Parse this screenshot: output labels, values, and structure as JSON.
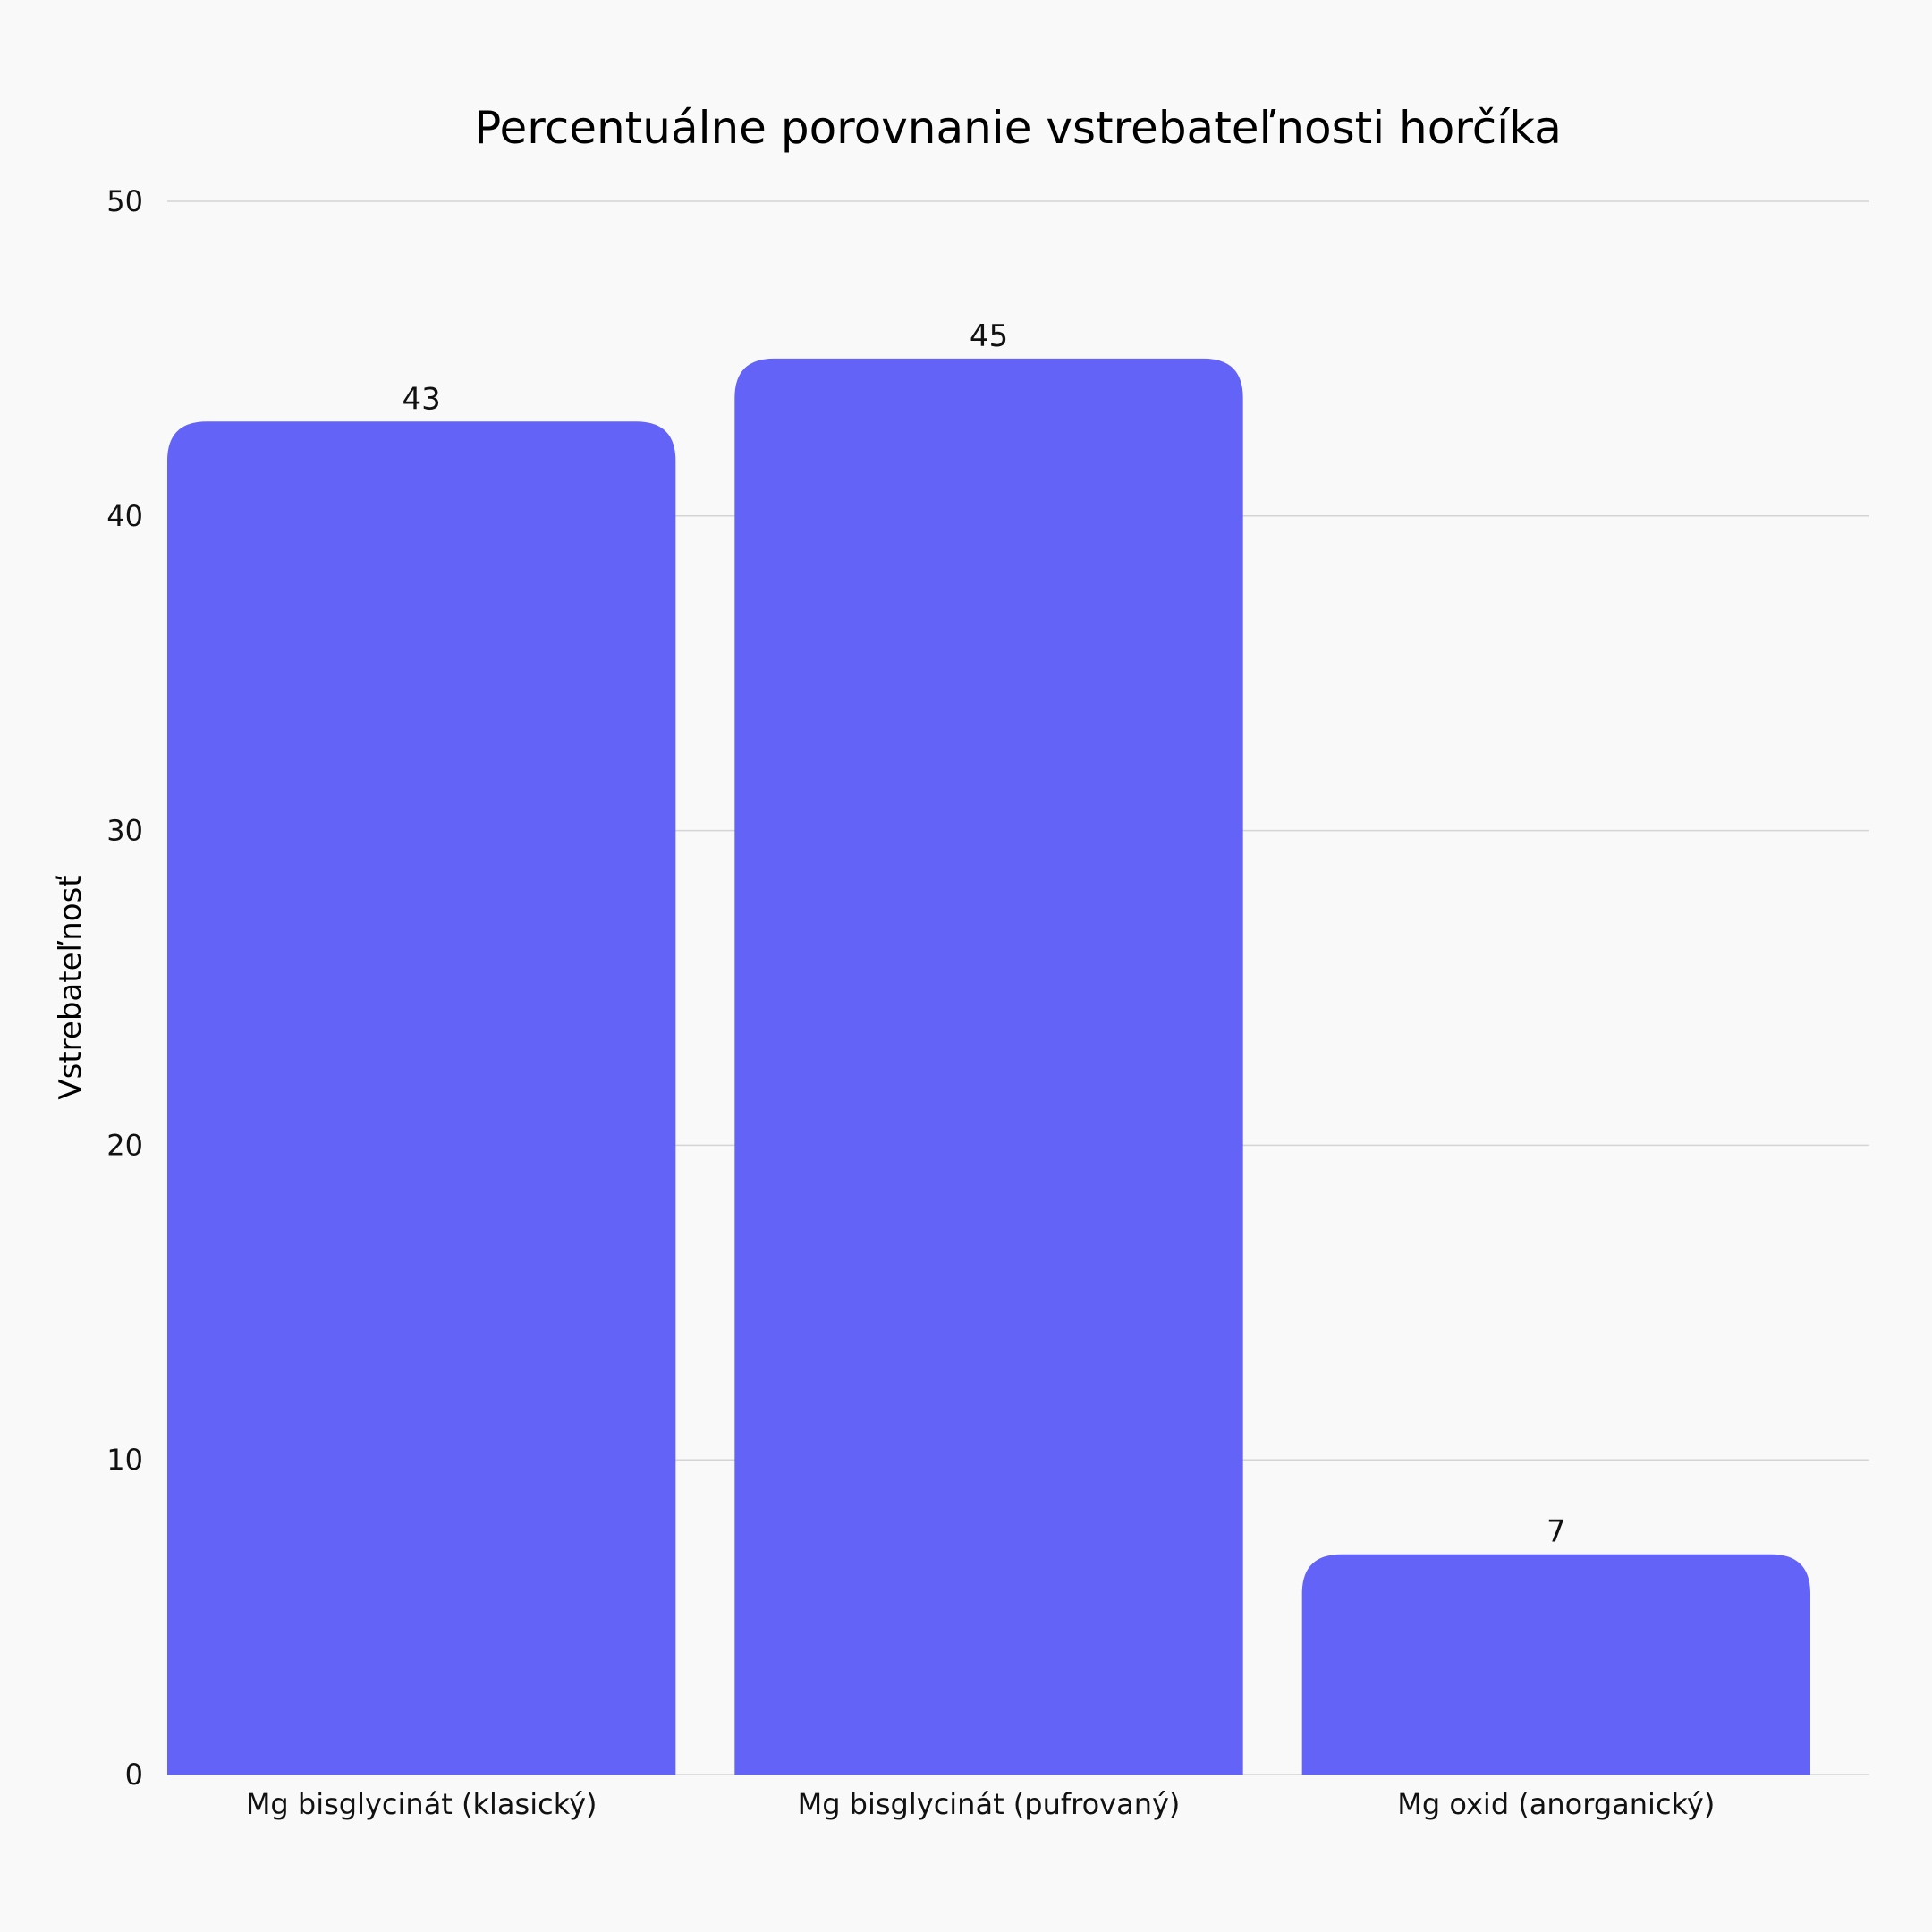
{
  "chart_data": {
    "type": "bar",
    "title": "Percentuálne porovnanie vstrebateľnosti horčíka",
    "xlabel": "",
    "ylabel": "Vstrebateľnosť",
    "categories": [
      "Mg bisglycinát (klasický)",
      "Mg bisglycinát (pufrovaný)",
      "Mg oxid (anorganický)"
    ],
    "values": [
      43,
      45,
      7
    ],
    "data_labels": [
      "43",
      "45",
      "7"
    ],
    "ylim": [
      0,
      50
    ],
    "yticks": [
      0,
      10,
      20,
      30,
      40,
      50
    ],
    "grid": true,
    "legend": "none",
    "colors": {
      "bar": "#6363f7",
      "grid": "#d4d4d4",
      "background": "#f9f9f9",
      "text": "#111111"
    }
  }
}
